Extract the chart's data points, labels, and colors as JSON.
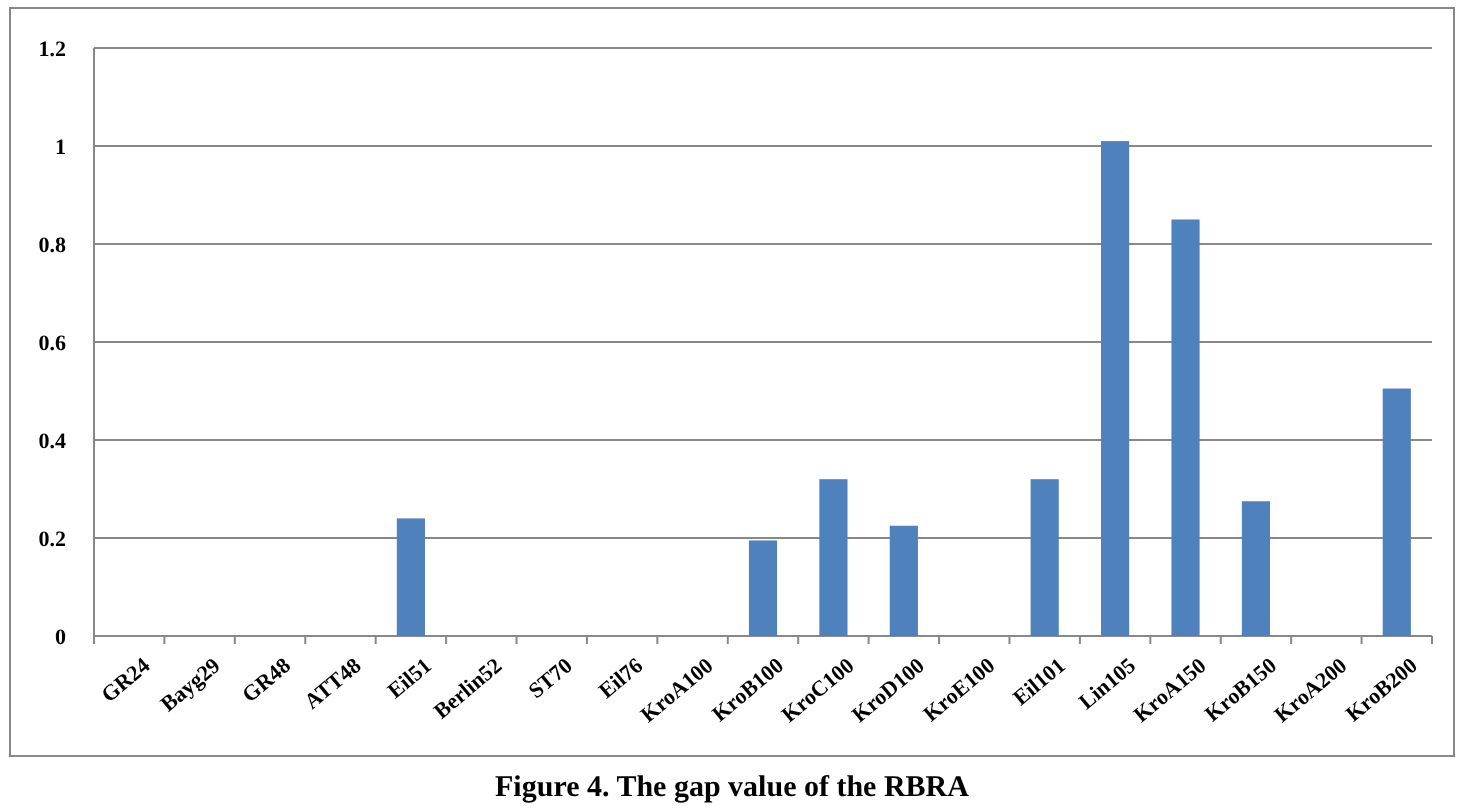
{
  "chart_data": {
    "type": "bar",
    "title": "Figure 4. The gap value of the RBRA",
    "categories": [
      "GR24",
      "Bayg29",
      "GR48",
      "ATT48",
      "Eil51",
      "Berlin52",
      "ST70",
      "Eil76",
      "KroA100",
      "KroB100",
      "KroC100",
      "KroD100",
      "KroE100",
      "Eil101",
      "Lin105",
      "KroA150",
      "KroB150",
      "KroA200",
      "KroB200"
    ],
    "values": [
      0,
      0,
      0,
      0,
      0.24,
      0,
      0,
      0,
      0,
      0.195,
      0.32,
      0.225,
      0,
      0.32,
      1.01,
      0.85,
      0.275,
      0,
      0.505
    ],
    "color": "#4f81bd",
    "ylim": [
      0,
      1.2
    ],
    "yticks": [
      0,
      0.2,
      0.4,
      0.6,
      0.8,
      1,
      1.2
    ],
    "grid": "y"
  }
}
